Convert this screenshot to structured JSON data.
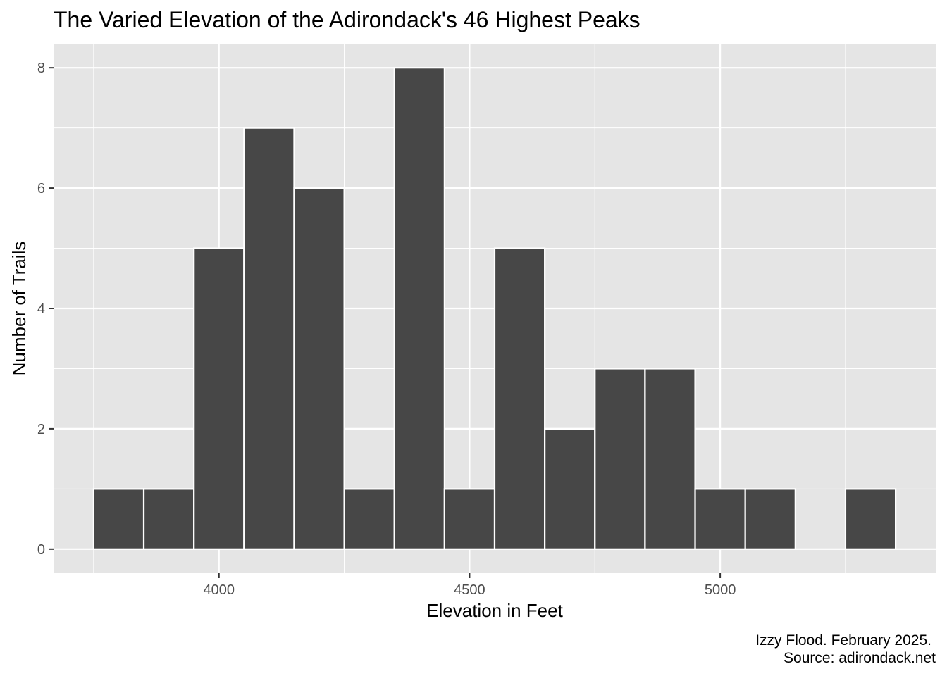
{
  "chart_data": {
    "type": "bar",
    "subtype": "histogram",
    "title": "The Varied Elevation of the Adirondack's 46 Highest Peaks",
    "xlabel": "Elevation in Feet",
    "ylabel": "Number of Trails",
    "caption": [
      "Izzy Flood. February 2025.",
      "Source: adirondack.net"
    ],
    "bin_width": 100,
    "bins": [
      {
        "x_min": 3750,
        "x_max": 3850,
        "count": 1
      },
      {
        "x_min": 3850,
        "x_max": 3950,
        "count": 1
      },
      {
        "x_min": 3950,
        "x_max": 4050,
        "count": 5
      },
      {
        "x_min": 4050,
        "x_max": 4150,
        "count": 7
      },
      {
        "x_min": 4150,
        "x_max": 4250,
        "count": 6
      },
      {
        "x_min": 4250,
        "x_max": 4350,
        "count": 1
      },
      {
        "x_min": 4350,
        "x_max": 4450,
        "count": 8
      },
      {
        "x_min": 4450,
        "x_max": 4550,
        "count": 1
      },
      {
        "x_min": 4550,
        "x_max": 4650,
        "count": 5
      },
      {
        "x_min": 4650,
        "x_max": 4750,
        "count": 2
      },
      {
        "x_min": 4750,
        "x_max": 4850,
        "count": 3
      },
      {
        "x_min": 4850,
        "x_max": 4950,
        "count": 3
      },
      {
        "x_min": 4950,
        "x_max": 5050,
        "count": 1
      },
      {
        "x_min": 5050,
        "x_max": 5150,
        "count": 1
      },
      {
        "x_min": 5150,
        "x_max": 5250,
        "count": 0
      },
      {
        "x_min": 5250,
        "x_max": 5350,
        "count": 1
      }
    ],
    "xlim": [
      3670,
      5430
    ],
    "ylim": [
      -0.4,
      8.4
    ],
    "x_ticks": [
      4000,
      4500,
      5000
    ],
    "x_tick_labels": [
      "4000",
      "4500",
      "5000"
    ],
    "x_minor_gridlines": [
      3750,
      4250,
      4750,
      5250
    ],
    "y_ticks": [
      0,
      2,
      4,
      6,
      8
    ],
    "y_tick_labels": [
      "0",
      "2",
      "4",
      "6",
      "8"
    ],
    "y_minor_gridlines": [
      1,
      3,
      5,
      7
    ],
    "grid": true,
    "legend": "none",
    "colors": {
      "panel_background": "#e5e5e5",
      "gridline": "#ffffff",
      "bar_fill": "#474747",
      "bar_outline": "#ffffff",
      "tick_label": "#4d4d4d",
      "tick_mark": "#333333",
      "text": "#000000"
    }
  }
}
